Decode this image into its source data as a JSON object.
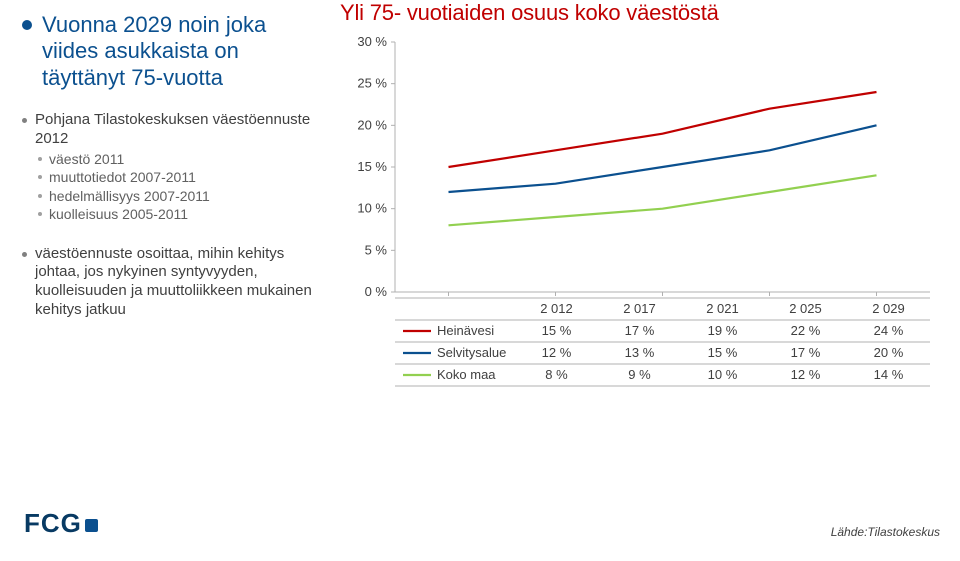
{
  "left": {
    "headline": "Vuonna 2029 noin joka viides asukkaista on täyttänyt 75-vuotta",
    "group1": {
      "title": "Pohjana Tilastokeskuksen väestöennuste 2012",
      "items": [
        "väestö 2011",
        "muuttotiedot 2007-2011",
        "hedelmällisyys 2007-2011",
        "kuolleisuus 2005-2011"
      ]
    },
    "group2": {
      "title": "väestöennuste osoittaa, mihin kehitys johtaa, jos nykyinen syntyvyyden, kuolleisuuden ja muuttoliikkeen mukainen kehitys jatkuu"
    }
  },
  "chart": {
    "title": "Yli 75- vuotiaiden osuus koko väestöstä",
    "type": "line",
    "ylim": [
      0,
      30
    ],
    "ytick_step": 5,
    "y_format_suffix": " %",
    "x_categories": [
      "2 012",
      "2 017",
      "2 021",
      "2 025",
      "2 029"
    ],
    "title_fontsize": 22,
    "title_color": "#c00000",
    "tick_fontsize": 13,
    "background_color": "#ffffff",
    "plot_border_color": "#b0b0b0",
    "grid": false,
    "line_width": 2.2,
    "series": [
      {
        "name": "Heinävesi",
        "color": "#c00000",
        "values": [
          15,
          17,
          19,
          22,
          24
        ]
      },
      {
        "name": "Selvitysalue",
        "color": "#0b508f",
        "values": [
          12,
          13,
          15,
          17,
          20
        ]
      },
      {
        "name": "Koko maa",
        "color": "#92d050",
        "values": [
          8,
          9,
          10,
          12,
          14
        ]
      }
    ],
    "legend_value_suffix": " %"
  },
  "footer": {
    "source": "Lähde:Tilastokeskus",
    "logo": "FCG"
  }
}
